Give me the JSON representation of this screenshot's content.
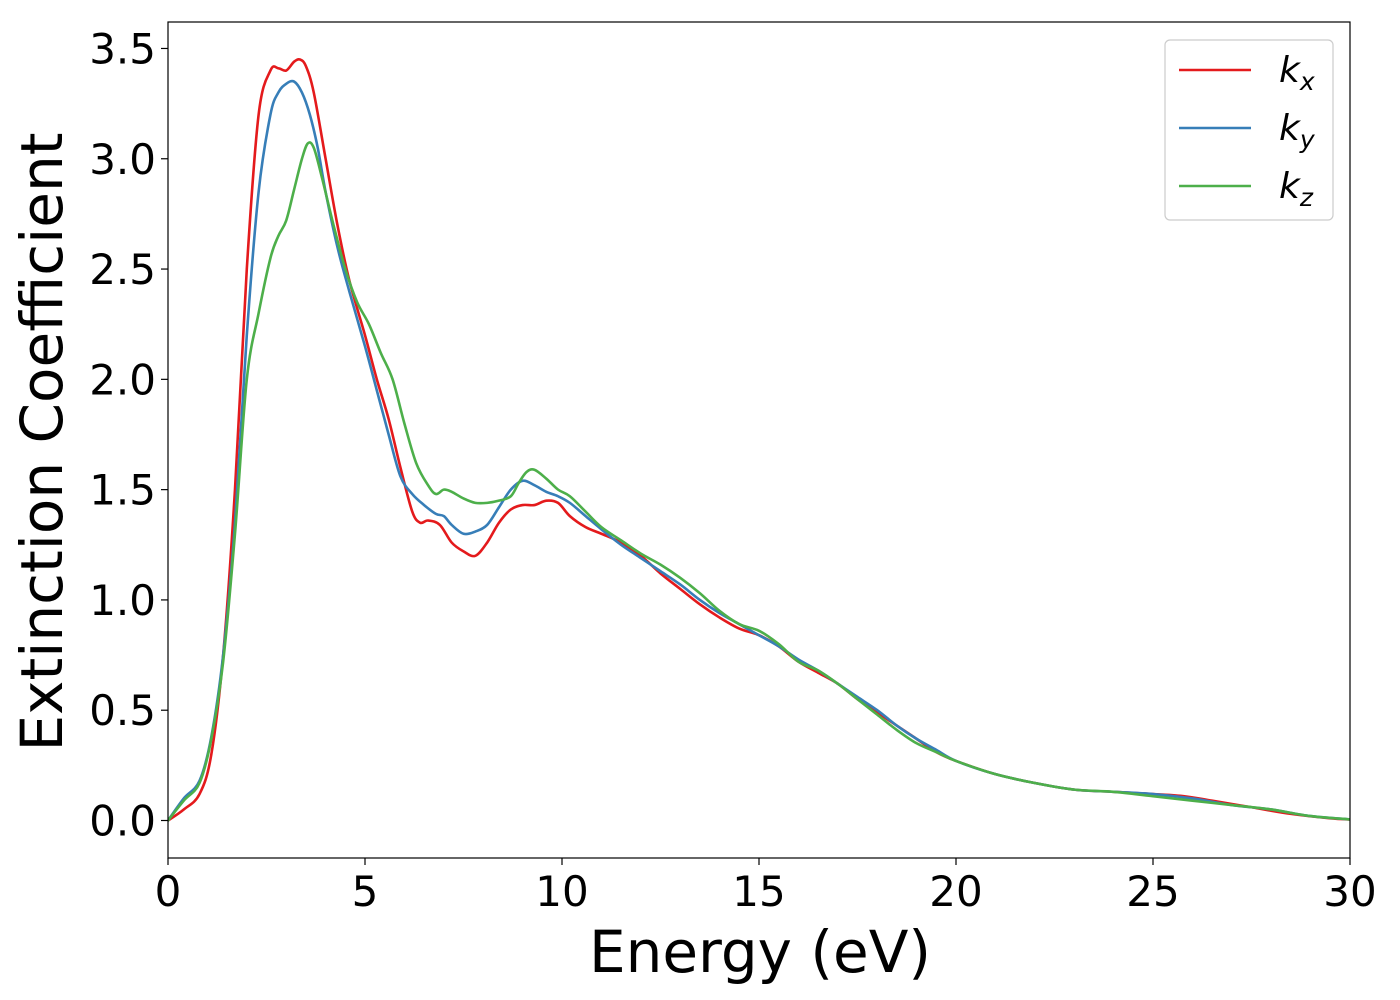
{
  "chart_data": {
    "type": "line",
    "title": "",
    "xlabel": "Energy (eV)",
    "ylabel": "Extinction Coefficient",
    "xlim": [
      0,
      30
    ],
    "ylim": [
      -0.17,
      3.62
    ],
    "xticks": [
      0,
      5,
      10,
      15,
      20,
      25,
      30
    ],
    "xtick_labels": [
      "0",
      "5",
      "10",
      "15",
      "20",
      "25",
      "30"
    ],
    "yticks": [
      0,
      0.5,
      1,
      1.5,
      2,
      2.5,
      3,
      3.5
    ],
    "ytick_labels": [
      "0.0",
      "0.5",
      "1.0",
      "1.5",
      "2.0",
      "2.5",
      "3.0",
      "3.5"
    ],
    "grid": false,
    "legend": "top-right",
    "series": [
      {
        "name": "k",
        "subscript": "x",
        "color": "#e41a1c",
        "x": [
          0,
          0.4,
          0.8,
          1.1,
          1.4,
          1.7,
          2.0,
          2.3,
          2.6,
          2.8,
          3.0,
          3.2,
          3.35,
          3.5,
          3.7,
          4.0,
          4.3,
          4.6,
          5.0,
          5.3,
          5.6,
          5.9,
          6.2,
          6.4,
          6.6,
          6.9,
          7.2,
          7.5,
          7.8,
          8.1,
          8.4,
          8.7,
          9.0,
          9.3,
          9.6,
          9.9,
          10.2,
          10.6,
          11.0,
          11.5,
          12.0,
          12.5,
          13.0,
          13.5,
          14.0,
          14.5,
          15.0,
          15.5,
          16.0,
          16.5,
          17.0,
          17.5,
          18.0,
          18.5,
          19.0,
          19.5,
          20.0,
          21.0,
          22.0,
          23.0,
          24.0,
          25.0,
          25.8,
          26.5,
          27.5,
          28.5,
          29.5,
          30.0
        ],
        "y": [
          0,
          0.05,
          0.12,
          0.3,
          0.75,
          1.5,
          2.5,
          3.2,
          3.4,
          3.41,
          3.4,
          3.44,
          3.45,
          3.42,
          3.3,
          3.0,
          2.7,
          2.45,
          2.2,
          2.0,
          1.82,
          1.6,
          1.4,
          1.35,
          1.36,
          1.34,
          1.26,
          1.22,
          1.2,
          1.26,
          1.35,
          1.41,
          1.43,
          1.43,
          1.45,
          1.44,
          1.38,
          1.33,
          1.3,
          1.26,
          1.2,
          1.12,
          1.05,
          0.98,
          0.92,
          0.87,
          0.84,
          0.79,
          0.72,
          0.67,
          0.62,
          0.55,
          0.49,
          0.43,
          0.37,
          0.31,
          0.27,
          0.21,
          0.17,
          0.14,
          0.13,
          0.12,
          0.11,
          0.09,
          0.06,
          0.03,
          0.01,
          0.005
        ]
      },
      {
        "name": "k",
        "subscript": "y",
        "color": "#377eb8",
        "x": [
          0,
          0.4,
          0.8,
          1.1,
          1.4,
          1.7,
          2.0,
          2.3,
          2.6,
          2.8,
          3.0,
          3.2,
          3.4,
          3.6,
          3.8,
          4.0,
          4.3,
          4.6,
          5.0,
          5.3,
          5.6,
          5.9,
          6.2,
          6.5,
          6.8,
          7.0,
          7.2,
          7.5,
          7.8,
          8.1,
          8.4,
          8.7,
          9.0,
          9.3,
          9.6,
          9.9,
          10.2,
          10.6,
          11.0,
          11.5,
          12.0,
          12.5,
          13.0,
          13.5,
          14.0,
          14.5,
          15.0,
          15.5,
          16.0,
          16.5,
          17.0,
          17.5,
          18.0,
          18.5,
          19.0,
          19.5,
          20.0,
          21.0,
          22.0,
          23.0,
          24.0,
          25.0,
          26.0,
          27.0,
          28.0,
          29.0,
          30.0
        ],
        "y": [
          0,
          0.1,
          0.18,
          0.38,
          0.75,
          1.35,
          2.2,
          2.85,
          3.2,
          3.3,
          3.34,
          3.35,
          3.3,
          3.2,
          3.05,
          2.85,
          2.6,
          2.4,
          2.15,
          1.95,
          1.75,
          1.56,
          1.48,
          1.43,
          1.39,
          1.38,
          1.34,
          1.3,
          1.31,
          1.34,
          1.42,
          1.5,
          1.54,
          1.52,
          1.49,
          1.47,
          1.44,
          1.38,
          1.32,
          1.25,
          1.19,
          1.13,
          1.07,
          1.0,
          0.94,
          0.89,
          0.84,
          0.79,
          0.73,
          0.68,
          0.62,
          0.56,
          0.5,
          0.43,
          0.37,
          0.32,
          0.27,
          0.21,
          0.17,
          0.14,
          0.13,
          0.12,
          0.1,
          0.07,
          0.05,
          0.02,
          0.005
        ]
      },
      {
        "name": "k",
        "subscript": "z",
        "color": "#4daf4a",
        "x": [
          0,
          0.4,
          0.8,
          1.1,
          1.4,
          1.7,
          2.0,
          2.3,
          2.6,
          2.8,
          3.0,
          3.2,
          3.4,
          3.55,
          3.7,
          3.9,
          4.2,
          4.5,
          4.8,
          5.1,
          5.4,
          5.7,
          6.0,
          6.3,
          6.6,
          6.8,
          7.0,
          7.2,
          7.5,
          7.8,
          8.1,
          8.4,
          8.7,
          8.9,
          9.1,
          9.3,
          9.6,
          9.9,
          10.2,
          10.6,
          11.0,
          11.5,
          12.0,
          12.5,
          13.0,
          13.5,
          14.0,
          14.5,
          15.0,
          15.5,
          16.0,
          16.5,
          17.0,
          17.5,
          18.0,
          18.5,
          19.0,
          19.5,
          20.0,
          21.0,
          22.0,
          23.0,
          24.0,
          25.0,
          26.0,
          27.0,
          28.0,
          29.0,
          30.0
        ],
        "y": [
          0,
          0.09,
          0.17,
          0.37,
          0.72,
          1.3,
          2.0,
          2.3,
          2.55,
          2.65,
          2.72,
          2.86,
          3.0,
          3.07,
          3.05,
          2.92,
          2.7,
          2.5,
          2.35,
          2.25,
          2.12,
          2.0,
          1.8,
          1.62,
          1.52,
          1.48,
          1.5,
          1.49,
          1.46,
          1.44,
          1.44,
          1.45,
          1.47,
          1.53,
          1.58,
          1.59,
          1.55,
          1.5,
          1.47,
          1.4,
          1.33,
          1.27,
          1.21,
          1.16,
          1.1,
          1.03,
          0.95,
          0.89,
          0.86,
          0.8,
          0.72,
          0.68,
          0.62,
          0.55,
          0.48,
          0.41,
          0.35,
          0.31,
          0.27,
          0.21,
          0.17,
          0.14,
          0.13,
          0.11,
          0.09,
          0.07,
          0.05,
          0.02,
          0.005
        ]
      }
    ]
  }
}
